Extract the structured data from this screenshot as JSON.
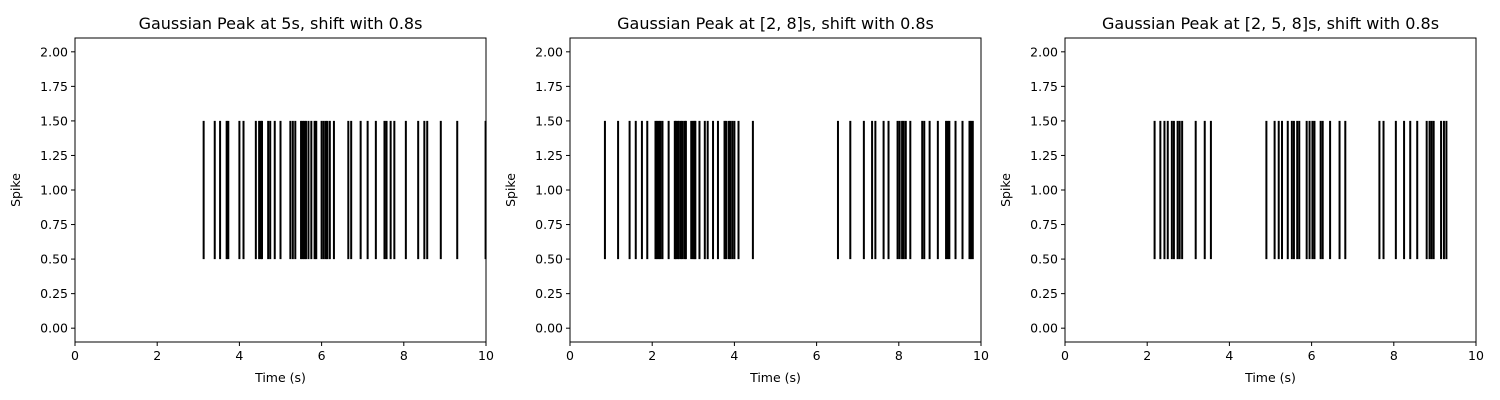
{
  "chart_data": [
    {
      "type": "eventplot",
      "title": "Gaussian Peak at 5s, shift with 0.8s",
      "xlabel": "Time (s)",
      "ylabel": "Spike",
      "xlim": [
        0,
        10
      ],
      "ylim": [
        -0.1,
        2.1
      ],
      "xticks": [
        0,
        2,
        4,
        6,
        8,
        10
      ],
      "yticks": [
        0.0,
        0.25,
        0.5,
        0.75,
        1.0,
        1.25,
        1.5,
        1.75,
        2.0
      ],
      "event_range": [
        0.5,
        1.5
      ],
      "color": "#000000",
      "spikes": [
        3.13,
        3.4,
        3.53,
        3.69,
        3.73,
        4.0,
        4.1,
        4.4,
        4.48,
        4.52,
        4.55,
        4.7,
        4.75,
        4.86,
        5.0,
        5.24,
        5.3,
        5.36,
        5.5,
        5.54,
        5.58,
        5.62,
        5.68,
        5.75,
        5.83,
        5.87,
        6.0,
        6.05,
        6.1,
        6.14,
        6.2,
        6.3,
        6.65,
        6.72,
        6.95,
        7.12,
        7.32,
        7.53,
        7.58,
        7.68,
        7.77,
        8.05,
        8.35,
        8.5,
        8.57,
        8.9,
        9.3,
        9.99
      ]
    },
    {
      "type": "eventplot",
      "title": "Gaussian Peak at [2, 8]s, shift with 0.8s",
      "xlabel": "Time (s)",
      "ylabel": "Spike",
      "xlim": [
        0,
        10
      ],
      "ylim": [
        -0.1,
        2.1
      ],
      "xticks": [
        0,
        2,
        4,
        6,
        8,
        10
      ],
      "yticks": [
        0.0,
        0.25,
        0.5,
        0.75,
        1.0,
        1.25,
        1.5,
        1.75,
        2.0
      ],
      "event_range": [
        0.5,
        1.5
      ],
      "color": "#000000",
      "spikes": [
        0.85,
        1.17,
        1.45,
        1.6,
        1.75,
        1.88,
        2.08,
        2.12,
        2.16,
        2.2,
        2.25,
        2.4,
        2.55,
        2.58,
        2.62,
        2.65,
        2.7,
        2.74,
        2.79,
        2.82,
        2.95,
        2.99,
        3.03,
        3.05,
        3.15,
        3.28,
        3.35,
        3.48,
        3.6,
        3.76,
        3.8,
        3.86,
        3.9,
        3.95,
        4.0,
        4.1,
        4.45,
        6.52,
        6.82,
        7.15,
        7.35,
        7.43,
        7.63,
        7.75,
        7.97,
        8.02,
        8.08,
        8.12,
        8.17,
        8.28,
        8.57,
        8.62,
        8.75,
        8.95,
        9.15,
        9.19,
        9.23,
        9.38,
        9.55,
        9.72,
        9.76,
        9.8
      ]
    },
    {
      "type": "eventplot",
      "title": "Gaussian Peak at [2, 5, 8]s, shift with 0.8s",
      "xlabel": "Time (s)",
      "ylabel": "Spike",
      "xlim": [
        0,
        10
      ],
      "ylim": [
        -0.1,
        2.1
      ],
      "xticks": [
        0,
        2,
        4,
        6,
        8,
        10
      ],
      "yticks": [
        0.0,
        0.25,
        0.5,
        0.75,
        1.0,
        1.25,
        1.5,
        1.75,
        2.0
      ],
      "event_range": [
        0.5,
        1.5
      ],
      "color": "#000000",
      "spikes": [
        2.18,
        2.32,
        2.42,
        2.5,
        2.6,
        2.65,
        2.74,
        2.79,
        2.85,
        3.18,
        3.4,
        3.55,
        4.9,
        5.1,
        5.2,
        5.28,
        5.42,
        5.52,
        5.57,
        5.65,
        5.7,
        5.88,
        5.95,
        6.02,
        6.07,
        6.22,
        6.27,
        6.45,
        6.68,
        6.82,
        7.65,
        7.75,
        8.05,
        8.25,
        8.4,
        8.57,
        8.8,
        8.87,
        8.92,
        8.97,
        9.15,
        9.22,
        9.28
      ]
    }
  ]
}
